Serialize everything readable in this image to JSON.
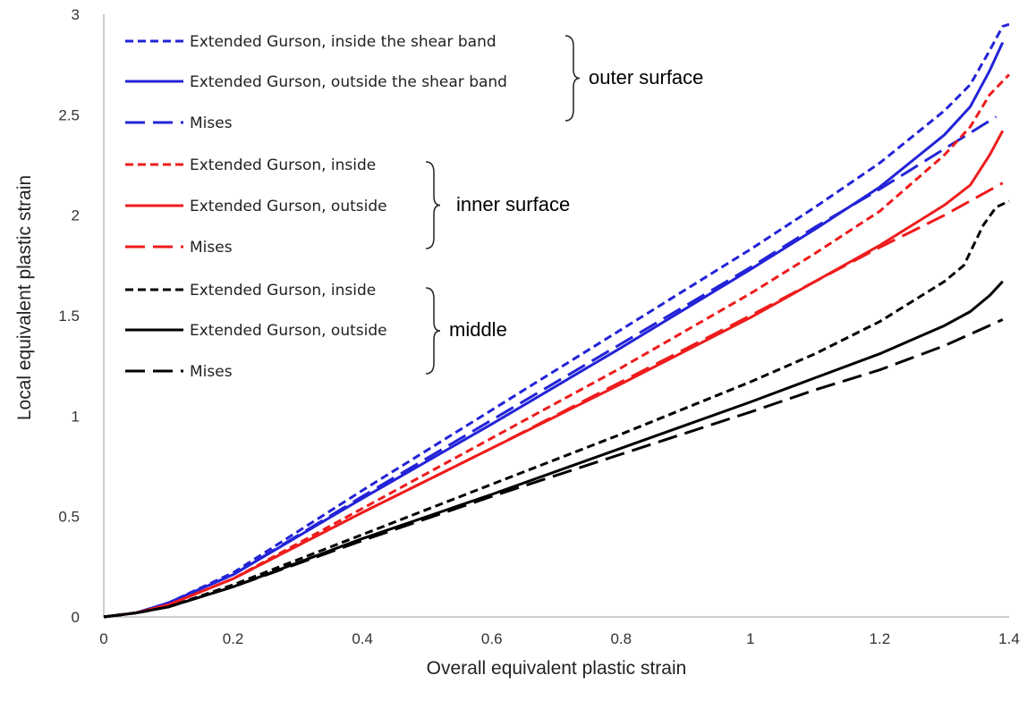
{
  "chart_data": {
    "type": "line",
    "xlabel": "Overall equivalent plastic strain",
    "ylabel": "Local equivalent plastic strain",
    "xlim": [
      0,
      1.4
    ],
    "ylim": [
      0,
      3
    ],
    "xticks": [
      0,
      0.2,
      0.4,
      0.6,
      0.8,
      1,
      1.2,
      1.4
    ],
    "yticks": [
      0,
      0.5,
      1,
      1.5,
      2,
      2.5,
      3
    ],
    "xtick_labels": [
      "0",
      "0.2",
      "0.4",
      "0.6",
      "0.8",
      "1",
      "1.2",
      "1.4"
    ],
    "ytick_labels": [
      "0",
      "0.5",
      "1",
      "1.5",
      "2",
      "2.5",
      "3"
    ],
    "grid": false,
    "legend_position": "top-left",
    "groups": [
      {
        "label": "outer surface",
        "series_indices": [
          0,
          1,
          2
        ]
      },
      {
        "label": "inner surface",
        "series_indices": [
          3,
          4,
          5
        ]
      },
      {
        "label": "middle",
        "series_indices": [
          6,
          7,
          8
        ]
      }
    ],
    "series": [
      {
        "name": "Extended Gurson, inside the shear band",
        "color": "#2323d8",
        "style": "short-dash",
        "points": [
          [
            0,
            0
          ],
          [
            0.05,
            0.02
          ],
          [
            0.1,
            0.07
          ],
          [
            0.2,
            0.22
          ],
          [
            0.4,
            0.63
          ],
          [
            0.6,
            1.03
          ],
          [
            0.8,
            1.43
          ],
          [
            1.0,
            1.83
          ],
          [
            1.1,
            2.04
          ],
          [
            1.2,
            2.26
          ],
          [
            1.3,
            2.52
          ],
          [
            1.34,
            2.65
          ],
          [
            1.37,
            2.82
          ],
          [
            1.39,
            2.94
          ],
          [
            1.4,
            2.95
          ]
        ]
      },
      {
        "name": "Extended Gurson, outside the shear band",
        "color": "#2323d8",
        "style": "solid",
        "points": [
          [
            0,
            0
          ],
          [
            0.05,
            0.02
          ],
          [
            0.1,
            0.07
          ],
          [
            0.2,
            0.21
          ],
          [
            0.4,
            0.59
          ],
          [
            0.6,
            0.96
          ],
          [
            0.8,
            1.34
          ],
          [
            1.0,
            1.73
          ],
          [
            1.1,
            1.93
          ],
          [
            1.2,
            2.14
          ],
          [
            1.3,
            2.4
          ],
          [
            1.34,
            2.54
          ],
          [
            1.37,
            2.72
          ],
          [
            1.39,
            2.86
          ]
        ]
      },
      {
        "name": "Mises",
        "color": "#2323d8",
        "style": "long-dash",
        "points": [
          [
            0,
            0
          ],
          [
            0.05,
            0.02
          ],
          [
            0.1,
            0.07
          ],
          [
            0.2,
            0.21
          ],
          [
            0.4,
            0.6
          ],
          [
            0.6,
            0.98
          ],
          [
            0.8,
            1.36
          ],
          [
            1.0,
            1.74
          ],
          [
            1.1,
            1.94
          ],
          [
            1.2,
            2.13
          ],
          [
            1.3,
            2.33
          ],
          [
            1.38,
            2.49
          ]
        ]
      },
      {
        "name": "Extended Gurson, inside",
        "color": "#ee1c1c",
        "style": "short-dash",
        "points": [
          [
            0,
            0
          ],
          [
            0.05,
            0.02
          ],
          [
            0.1,
            0.06
          ],
          [
            0.2,
            0.19
          ],
          [
            0.4,
            0.54
          ],
          [
            0.6,
            0.89
          ],
          [
            0.8,
            1.24
          ],
          [
            1.0,
            1.61
          ],
          [
            1.1,
            1.81
          ],
          [
            1.2,
            2.02
          ],
          [
            1.3,
            2.3
          ],
          [
            1.34,
            2.44
          ],
          [
            1.37,
            2.6
          ],
          [
            1.4,
            2.7
          ]
        ]
      },
      {
        "name": "Extended Gurson, outside",
        "color": "#ee1c1c",
        "style": "solid",
        "points": [
          [
            0,
            0
          ],
          [
            0.05,
            0.02
          ],
          [
            0.1,
            0.06
          ],
          [
            0.2,
            0.19
          ],
          [
            0.4,
            0.52
          ],
          [
            0.6,
            0.84
          ],
          [
            0.8,
            1.16
          ],
          [
            1.0,
            1.49
          ],
          [
            1.1,
            1.67
          ],
          [
            1.2,
            1.85
          ],
          [
            1.3,
            2.05
          ],
          [
            1.34,
            2.15
          ],
          [
            1.37,
            2.3
          ],
          [
            1.39,
            2.42
          ]
        ]
      },
      {
        "name": "Mises",
        "color": "#ee1c1c",
        "style": "long-dash",
        "points": [
          [
            0,
            0
          ],
          [
            0.05,
            0.02
          ],
          [
            0.1,
            0.06
          ],
          [
            0.2,
            0.19
          ],
          [
            0.4,
            0.52
          ],
          [
            0.6,
            0.84
          ],
          [
            0.8,
            1.17
          ],
          [
            1.0,
            1.5
          ],
          [
            1.1,
            1.67
          ],
          [
            1.2,
            1.84
          ],
          [
            1.3,
            2.0
          ],
          [
            1.39,
            2.16
          ]
        ]
      },
      {
        "name": "Extended Gurson, inside",
        "color": "#000000",
        "style": "short-dash",
        "points": [
          [
            0,
            0
          ],
          [
            0.05,
            0.02
          ],
          [
            0.1,
            0.05
          ],
          [
            0.2,
            0.16
          ],
          [
            0.4,
            0.41
          ],
          [
            0.6,
            0.66
          ],
          [
            0.8,
            0.91
          ],
          [
            1.0,
            1.17
          ],
          [
            1.1,
            1.31
          ],
          [
            1.2,
            1.47
          ],
          [
            1.3,
            1.67
          ],
          [
            1.33,
            1.75
          ],
          [
            1.36,
            1.95
          ],
          [
            1.38,
            2.04
          ],
          [
            1.4,
            2.07
          ]
        ]
      },
      {
        "name": "Extended Gurson, outside",
        "color": "#000000",
        "style": "solid",
        "points": [
          [
            0,
            0
          ],
          [
            0.05,
            0.02
          ],
          [
            0.1,
            0.05
          ],
          [
            0.2,
            0.15
          ],
          [
            0.4,
            0.39
          ],
          [
            0.6,
            0.61
          ],
          [
            0.8,
            0.84
          ],
          [
            1.0,
            1.07
          ],
          [
            1.1,
            1.19
          ],
          [
            1.2,
            1.31
          ],
          [
            1.3,
            1.45
          ],
          [
            1.34,
            1.52
          ],
          [
            1.37,
            1.6
          ],
          [
            1.39,
            1.67
          ]
        ]
      },
      {
        "name": "Mises",
        "color": "#000000",
        "style": "long-dash",
        "points": [
          [
            0,
            0
          ],
          [
            0.05,
            0.02
          ],
          [
            0.1,
            0.05
          ],
          [
            0.2,
            0.15
          ],
          [
            0.4,
            0.38
          ],
          [
            0.6,
            0.6
          ],
          [
            0.8,
            0.81
          ],
          [
            1.0,
            1.02
          ],
          [
            1.1,
            1.13
          ],
          [
            1.2,
            1.23
          ],
          [
            1.3,
            1.35
          ],
          [
            1.39,
            1.48
          ]
        ]
      }
    ]
  }
}
